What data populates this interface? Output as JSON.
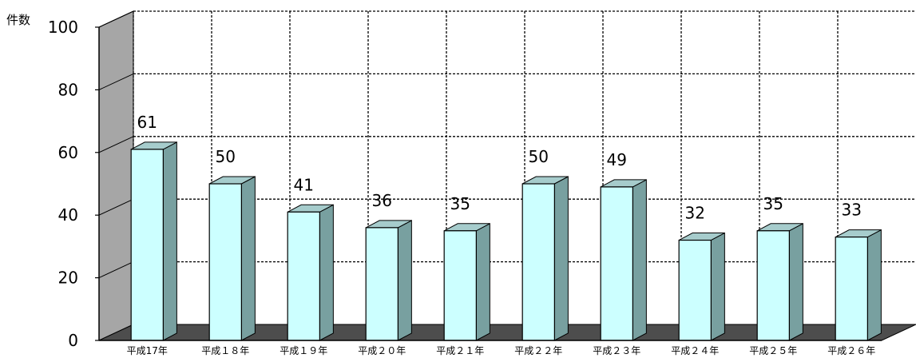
{
  "chart_data": {
    "type": "bar",
    "title": "",
    "xlabel": "",
    "ylabel": "件数",
    "ylim": [
      0,
      100
    ],
    "yticks": [
      0,
      20,
      40,
      60,
      80,
      100
    ],
    "grid": true,
    "categories": [
      "平成17年",
      "平成１８年",
      "平成１９年",
      "平成２０年",
      "平成２１年",
      "平成２２年",
      "平成２３年",
      "平成２４年",
      "平成２５年",
      "平成２６年"
    ],
    "values": [
      61,
      50,
      41,
      36,
      35,
      50,
      49,
      32,
      35,
      33
    ],
    "data_labels": [
      "61",
      "50",
      "41",
      "36",
      "35",
      "50",
      "49",
      "32",
      "35",
      "33"
    ],
    "colors": {
      "bar_front": "#ccffff",
      "bar_side": "#78a0a0",
      "bar_top": "#a6cccc",
      "back_wall": "#ffffff",
      "side_wall": "#a6a6a6",
      "floor": "#4d4d4d",
      "grid": "#000000"
    }
  }
}
